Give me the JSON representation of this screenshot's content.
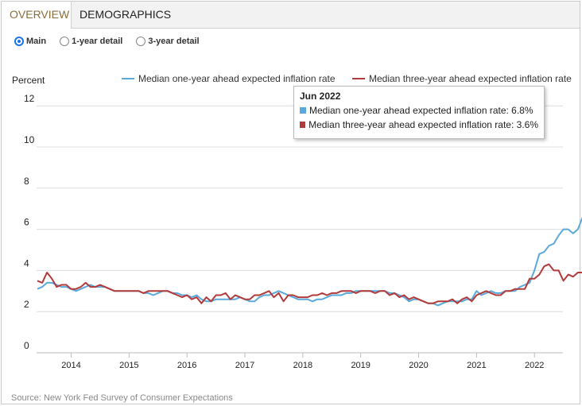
{
  "tabs": [
    {
      "label": "OVERVIEW",
      "active": true
    },
    {
      "label": "DEMOGRAPHICS",
      "active": false
    }
  ],
  "radio_options": [
    {
      "label": "Main",
      "checked": true
    },
    {
      "label": "1-year detail",
      "checked": false
    },
    {
      "label": "3-year detail",
      "checked": false
    }
  ],
  "source": "Source: New York Fed Survey of Consumer Expectations",
  "colors": {
    "one_year": "#5aa9dc",
    "three_year": "#b33a3a"
  },
  "tooltip": {
    "title": "Jun 2022",
    "rows": [
      "Median one-year ahead expected inflation rate: 6.8%",
      "Median three-year ahead expected inflation rate: 3.6%"
    ]
  },
  "chart_data": {
    "type": "line",
    "ylabel": "Percent",
    "ylim": [
      0,
      12
    ],
    "yticks": [
      0,
      2,
      4,
      6,
      8,
      10,
      12
    ],
    "grid": true,
    "x_start": {
      "year": 2013,
      "month": 6
    },
    "xticks": [
      "2014",
      "2015",
      "2016",
      "2017",
      "2018",
      "2019",
      "2020",
      "2021",
      "2022"
    ],
    "legend_position": "top-right",
    "series": [
      {
        "name": "Median one-year ahead expected inflation rate",
        "values": [
          3.1,
          3.2,
          3.4,
          3.4,
          3.3,
          3.2,
          3.2,
          3.1,
          3.0,
          3.1,
          3.2,
          3.3,
          3.2,
          3.2,
          3.2,
          3.1,
          3.0,
          3.0,
          3.0,
          3.0,
          3.0,
          3.0,
          2.9,
          2.9,
          2.8,
          2.9,
          3.0,
          3.0,
          2.9,
          2.9,
          2.8,
          2.8,
          2.7,
          2.8,
          2.6,
          2.5,
          2.5,
          2.6,
          2.6,
          2.6,
          2.6,
          2.6,
          2.7,
          2.6,
          2.5,
          2.5,
          2.7,
          2.8,
          2.8,
          2.9,
          3.0,
          2.9,
          2.8,
          2.7,
          2.6,
          2.6,
          2.6,
          2.5,
          2.6,
          2.6,
          2.7,
          2.8,
          2.8,
          2.8,
          2.9,
          2.9,
          3.0,
          3.0,
          3.0,
          3.0,
          3.0,
          3.0,
          3.0,
          2.9,
          2.9,
          2.8,
          2.7,
          2.5,
          2.6,
          2.6,
          2.5,
          2.4,
          2.4,
          2.3,
          2.4,
          2.5,
          2.5,
          2.5,
          2.5,
          2.6,
          2.6,
          3.0,
          2.8,
          2.9,
          3.0,
          2.9,
          2.9,
          3.0,
          3.0,
          3.0,
          3.2,
          3.3,
          3.4,
          4.0,
          4.8,
          4.9,
          5.2,
          5.3,
          5.7,
          6.0,
          6.0,
          5.8,
          6.0,
          6.6,
          6.3,
          6.6,
          6.8
        ]
      },
      {
        "name": "Median three-year ahead expected inflation rate",
        "values": [
          3.5,
          3.4,
          3.9,
          3.6,
          3.2,
          3.3,
          3.3,
          3.1,
          3.1,
          3.2,
          3.4,
          3.2,
          3.2,
          3.3,
          3.2,
          3.1,
          3.0,
          3.0,
          3.0,
          3.0,
          3.0,
          3.0,
          2.9,
          3.0,
          3.0,
          3.0,
          3.0,
          3.0,
          2.9,
          2.8,
          2.7,
          2.8,
          2.6,
          2.7,
          2.4,
          2.7,
          2.5,
          2.8,
          2.8,
          2.9,
          2.6,
          2.8,
          2.7,
          2.6,
          2.6,
          2.8,
          2.8,
          2.9,
          3.0,
          2.7,
          2.9,
          2.5,
          2.8,
          2.8,
          2.7,
          2.7,
          2.7,
          2.8,
          2.8,
          2.9,
          2.8,
          2.9,
          2.9,
          3.0,
          3.0,
          3.0,
          2.9,
          3.0,
          3.0,
          3.0,
          2.9,
          3.0,
          3.0,
          2.8,
          2.9,
          2.7,
          2.8,
          2.6,
          2.7,
          2.6,
          2.5,
          2.4,
          2.4,
          2.5,
          2.5,
          2.5,
          2.6,
          2.4,
          2.6,
          2.7,
          2.5,
          2.8,
          2.9,
          3.0,
          2.9,
          2.8,
          2.8,
          3.0,
          3.0,
          3.1,
          3.1,
          3.1,
          3.6,
          3.6,
          3.8,
          4.2,
          4.3,
          4.0,
          4.0,
          3.5,
          3.8,
          3.7,
          3.9,
          3.9,
          3.6
        ]
      }
    ]
  }
}
